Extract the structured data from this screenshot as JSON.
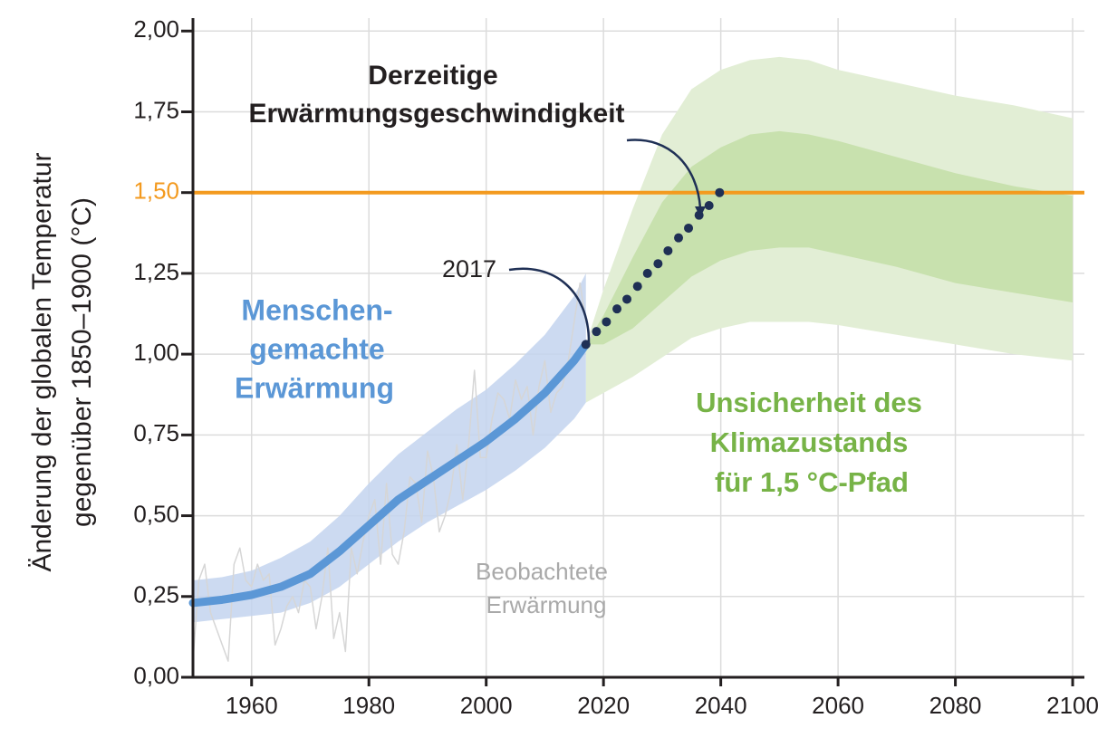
{
  "chart_data": {
    "type": "line",
    "ylabel": [
      "Änderung der globalen Temperatur",
      "gegenüber 1850–1900 (°C)"
    ],
    "xlim": [
      1950,
      2102
    ],
    "ylim": [
      0,
      2.04
    ],
    "xticks": [
      1960,
      1980,
      2000,
      2020,
      2040,
      2060,
      2080,
      2100
    ],
    "yticks": [
      {
        "value": 0,
        "label": "0,00"
      },
      {
        "value": 0.25,
        "label": "0,25"
      },
      {
        "value": 0.5,
        "label": "0,50"
      },
      {
        "value": 0.75,
        "label": "0,75"
      },
      {
        "value": 1,
        "label": "1,00"
      },
      {
        "value": 1.25,
        "label": "1,25"
      },
      {
        "value": 1.5,
        "label": "1,50"
      },
      {
        "value": 1.75,
        "label": "1,75"
      },
      {
        "value": 2,
        "label": "2,00"
      }
    ],
    "grid": true,
    "reference_line": {
      "y": 1.5,
      "color": "#f39a1f"
    },
    "observed": {
      "color": "#d6d6d6",
      "x": [
        1950,
        1951,
        1952,
        1953,
        1954,
        1955,
        1956,
        1957,
        1958,
        1959,
        1960,
        1961,
        1962,
        1963,
        1964,
        1965,
        1966,
        1967,
        1968,
        1969,
        1970,
        1971,
        1972,
        1973,
        1974,
        1975,
        1976,
        1977,
        1978,
        1979,
        1980,
        1981,
        1982,
        1983,
        1984,
        1985,
        1986,
        1987,
        1988,
        1989,
        1990,
        1991,
        1992,
        1993,
        1994,
        1995,
        1996,
        1997,
        1998,
        1999,
        2000,
        2001,
        2002,
        2003,
        2004,
        2005,
        2006,
        2007,
        2008,
        2009,
        2010,
        2011,
        2012,
        2013,
        2014,
        2015,
        2016,
        2017,
        2018
      ],
      "values": [
        0.05,
        0.3,
        0.35,
        0.2,
        0.15,
        0.1,
        0.05,
        0.35,
        0.4,
        0.3,
        0.28,
        0.35,
        0.3,
        0.32,
        0.1,
        0.15,
        0.22,
        0.25,
        0.2,
        0.3,
        0.28,
        0.15,
        0.25,
        0.4,
        0.12,
        0.2,
        0.08,
        0.4,
        0.32,
        0.42,
        0.5,
        0.55,
        0.35,
        0.6,
        0.38,
        0.35,
        0.45,
        0.62,
        0.6,
        0.48,
        0.7,
        0.62,
        0.45,
        0.5,
        0.58,
        0.72,
        0.55,
        0.72,
        0.95,
        0.68,
        0.68,
        0.8,
        0.88,
        0.86,
        0.8,
        0.92,
        0.86,
        0.9,
        0.75,
        0.9,
        0.98,
        0.82,
        0.88,
        0.9,
        0.98,
        1.1,
        1.22,
        1.1,
        1.05
      ]
    },
    "human_induced": {
      "color": "#5b97d6",
      "band_color": "#c3d3ee",
      "x": [
        1950,
        1955,
        1960,
        1965,
        1970,
        1975,
        1980,
        1985,
        1990,
        1995,
        2000,
        2005,
        2010,
        2015,
        2017
      ],
      "values": [
        0.23,
        0.24,
        0.255,
        0.28,
        0.32,
        0.39,
        0.47,
        0.55,
        0.61,
        0.67,
        0.73,
        0.8,
        0.88,
        0.98,
        1.03
      ],
      "lower": [
        0.17,
        0.18,
        0.19,
        0.2,
        0.23,
        0.28,
        0.35,
        0.42,
        0.48,
        0.53,
        0.58,
        0.64,
        0.71,
        0.8,
        0.85
      ],
      "upper": [
        0.3,
        0.31,
        0.33,
        0.37,
        0.42,
        0.5,
        0.6,
        0.69,
        0.76,
        0.83,
        0.89,
        0.97,
        1.06,
        1.18,
        1.25
      ]
    },
    "projection": {
      "color": "#1f3055",
      "x": [
        2017,
        2018.8,
        2020.5,
        2022.3,
        2024,
        2025.8,
        2027.5,
        2029.3,
        2031,
        2032.8,
        2034.5,
        2036.3,
        2038,
        2039.8
      ],
      "values": [
        1.03,
        1.07,
        1.1,
        1.14,
        1.17,
        1.21,
        1.25,
        1.28,
        1.32,
        1.36,
        1.39,
        1.43,
        1.46,
        1.5
      ]
    },
    "uncertainty_outer": {
      "color": "#e2eed5",
      "x": [
        2017,
        2020,
        2025,
        2030,
        2035,
        2040,
        2045,
        2050,
        2055,
        2060,
        2070,
        2080,
        2090,
        2100
      ],
      "upper": [
        1.03,
        1.2,
        1.45,
        1.68,
        1.82,
        1.88,
        1.91,
        1.92,
        1.91,
        1.88,
        1.84,
        1.8,
        1.77,
        1.73
      ],
      "lower": [
        0.85,
        0.88,
        0.93,
        0.99,
        1.05,
        1.08,
        1.1,
        1.1,
        1.1,
        1.09,
        1.06,
        1.03,
        1.0,
        0.98
      ]
    },
    "uncertainty_inner": {
      "color": "#c8e1ae",
      "x": [
        2017,
        2020,
        2025,
        2030,
        2035,
        2040,
        2045,
        2050,
        2055,
        2060,
        2070,
        2080,
        2090,
        2100
      ],
      "upper": [
        1.03,
        1.12,
        1.3,
        1.47,
        1.58,
        1.64,
        1.68,
        1.69,
        1.68,
        1.66,
        1.61,
        1.56,
        1.52,
        1.49
      ],
      "lower": [
        1.03,
        1.03,
        1.08,
        1.16,
        1.24,
        1.29,
        1.32,
        1.33,
        1.33,
        1.31,
        1.27,
        1.22,
        1.19,
        1.16
      ]
    },
    "annotations": {
      "current_rate": [
        "Derzeitige",
        "Erwärmungsgeschwindigkeit"
      ],
      "year_marker": "2017",
      "human_induced": [
        "Menschen-",
        "gemachte",
        "Erwärmung"
      ],
      "uncertainty": [
        "Unsicherheit des",
        "Klimazustands",
        "für 1,5 °C-Pfad"
      ],
      "observed": [
        "Beobachtete",
        "Erwärmung"
      ]
    }
  }
}
